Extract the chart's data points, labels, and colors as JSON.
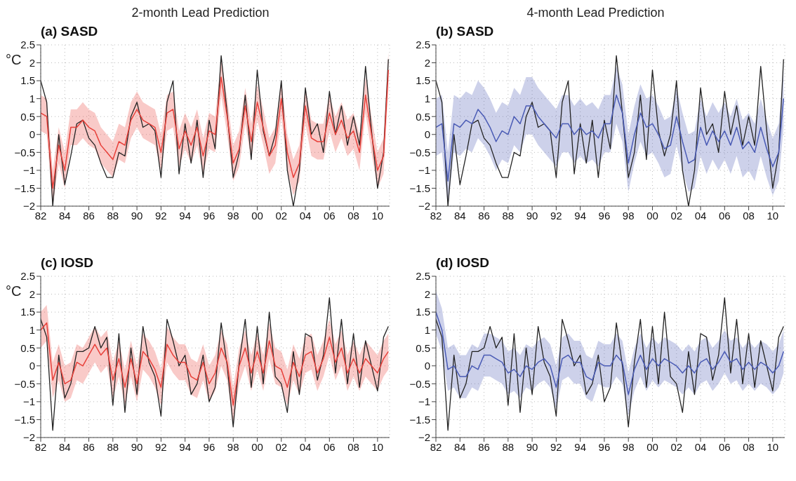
{
  "chart_data": [
    {
      "type": "line",
      "title": "2-month Lead Prediction",
      "subtitle": "(a) SASD",
      "ylabel": "°C",
      "x": [
        1982,
        1982.5,
        1983,
        1983.5,
        1984,
        1984.5,
        1985,
        1985.5,
        1986,
        1986.5,
        1987,
        1987.5,
        1988,
        1988.5,
        1989,
        1989.5,
        1990,
        1990.5,
        1991,
        1991.5,
        1992,
        1992.5,
        1993,
        1993.5,
        1994,
        1994.5,
        1995,
        1995.5,
        1996,
        1996.5,
        1997,
        1997.5,
        1998,
        1998.5,
        1999,
        1999.5,
        2000,
        2000.5,
        2001,
        2001.5,
        2002,
        2002.5,
        2003,
        2003.5,
        2004,
        2004.5,
        2005,
        2005.5,
        2006,
        2006.5,
        2007,
        2007.5,
        2008,
        2008.5,
        2009,
        2009.5,
        2010,
        2010.5,
        2010.9
      ],
      "series": [
        {
          "color": "#222222",
          "values": [
            1.5,
            0.9,
            -2.0,
            0.0,
            -1.4,
            -0.6,
            0.3,
            0.4,
            -0.1,
            -0.3,
            -0.8,
            -1.2,
            -1.2,
            -0.5,
            -0.6,
            0.5,
            0.9,
            0.2,
            0.3,
            0.1,
            -1.2,
            0.9,
            1.5,
            -1.1,
            0.3,
            -0.8,
            0.4,
            -1.2,
            0.4,
            -0.4,
            2.2,
            0.6,
            -1.2,
            -0.5,
            1.1,
            -0.7,
            1.8,
            0.1,
            -0.6,
            0.0,
            1.5,
            -1.0,
            -2.0,
            -1.0,
            1.3,
            0.0,
            0.3,
            -0.5,
            1.2,
            0.0,
            0.8,
            -0.3,
            0.5,
            -0.3,
            1.9,
            0.1,
            -1.5,
            -0.5,
            2.1
          ]
        },
        {
          "color": "#e8403a",
          "values": [
            0.6,
            0.5,
            -1.5,
            -0.3,
            -1.0,
            0.2,
            0.2,
            0.4,
            0.2,
            0.1,
            -0.3,
            -0.5,
            -0.7,
            -0.2,
            -0.3,
            0.4,
            0.7,
            0.4,
            0.3,
            0.2,
            -0.5,
            0.6,
            0.7,
            -0.4,
            0.1,
            -0.3,
            0.2,
            -0.6,
            0.1,
            0.0,
            1.6,
            0.5,
            -0.8,
            -0.4,
            0.8,
            -0.2,
            0.9,
            0.2,
            -0.6,
            -0.3,
            1.0,
            -0.5,
            -1.2,
            -0.8,
            0.8,
            -0.1,
            -0.2,
            -0.2,
            0.6,
            0.0,
            0.4,
            -0.1,
            0.1,
            -0.5,
            1.1,
            0.0,
            -1.0,
            -0.6,
            1.8
          ],
          "lower": [
            0.1,
            0.0,
            -2.0,
            -0.8,
            -1.5,
            -0.3,
            -0.3,
            -0.1,
            -0.3,
            -0.4,
            -0.8,
            -1.0,
            -1.2,
            -0.7,
            -0.8,
            -0.1,
            0.2,
            -0.1,
            -0.2,
            -0.3,
            -1.0,
            0.1,
            0.2,
            -0.9,
            -0.4,
            -0.8,
            -0.3,
            -1.1,
            -0.4,
            -0.5,
            1.1,
            0.0,
            -1.3,
            -0.9,
            0.3,
            -0.7,
            0.4,
            -0.3,
            -1.1,
            -0.8,
            0.5,
            -1.0,
            -1.7,
            -1.3,
            0.3,
            -0.6,
            -0.7,
            -0.7,
            0.1,
            -0.5,
            -0.1,
            -0.6,
            -0.4,
            -1.0,
            0.6,
            -0.5,
            -1.5,
            -1.1,
            1.3
          ],
          "upper": [
            1.1,
            1.0,
            -1.0,
            0.2,
            -0.5,
            0.7,
            0.7,
            0.9,
            0.7,
            0.6,
            0.2,
            0.0,
            -0.2,
            0.3,
            0.2,
            0.9,
            1.2,
            0.9,
            0.8,
            0.7,
            0.0,
            1.1,
            1.2,
            0.1,
            0.6,
            0.2,
            0.7,
            -0.1,
            0.6,
            0.5,
            2.1,
            1.0,
            -0.3,
            0.1,
            1.3,
            0.3,
            1.4,
            0.7,
            -0.1,
            0.2,
            1.5,
            0.0,
            -0.7,
            -0.3,
            1.3,
            0.4,
            0.3,
            0.3,
            1.1,
            0.5,
            0.9,
            0.4,
            0.6,
            0.0,
            1.6,
            0.5,
            -0.5,
            -0.1,
            2.3
          ]
        }
      ],
      "xlim": [
        1982,
        2011
      ],
      "xticks": [
        {
          "value": 1982,
          "label": "82"
        },
        {
          "value": 1984,
          "label": "84"
        },
        {
          "value": 1986,
          "label": "86"
        },
        {
          "value": 1988,
          "label": "88"
        },
        {
          "value": 1990,
          "label": "90"
        },
        {
          "value": 1992,
          "label": "92"
        },
        {
          "value": 1994,
          "label": "94"
        },
        {
          "value": 1996,
          "label": "96"
        },
        {
          "value": 1998,
          "label": "98"
        },
        {
          "value": 2000,
          "label": "00"
        },
        {
          "value": 2002,
          "label": "02"
        },
        {
          "value": 2004,
          "label": "04"
        },
        {
          "value": 2006,
          "label": "06"
        },
        {
          "value": 2008,
          "label": "08"
        },
        {
          "value": 2010,
          "label": "10"
        }
      ],
      "ylim": [
        -2,
        2.5
      ],
      "yticks": [
        -2,
        -1.5,
        -1,
        -0.5,
        0,
        0.5,
        1,
        1.5,
        2,
        2.5
      ],
      "grid": true
    },
    {
      "type": "line",
      "title": "4-month Lead Prediction",
      "subtitle": "(b) SASD",
      "x": [
        1982,
        1982.5,
        1983,
        1983.5,
        1984,
        1984.5,
        1985,
        1985.5,
        1986,
        1986.5,
        1987,
        1987.5,
        1988,
        1988.5,
        1989,
        1989.5,
        1990,
        1990.5,
        1991,
        1991.5,
        1992,
        1992.5,
        1993,
        1993.5,
        1994,
        1994.5,
        1995,
        1995.5,
        1996,
        1996.5,
        1997,
        1997.5,
        1998,
        1998.5,
        1999,
        1999.5,
        2000,
        2000.5,
        2001,
        2001.5,
        2002,
        2002.5,
        2003,
        2003.5,
        2004,
        2004.5,
        2005,
        2005.5,
        2006,
        2006.5,
        2007,
        2007.5,
        2008,
        2008.5,
        2009,
        2009.5,
        2010,
        2010.5,
        2010.9
      ],
      "series": [
        {
          "color": "#222222",
          "values": [
            1.5,
            0.9,
            -2.0,
            0.0,
            -1.4,
            -0.6,
            0.3,
            0.4,
            -0.1,
            -0.3,
            -0.8,
            -1.2,
            -1.2,
            -0.5,
            -0.6,
            0.5,
            0.9,
            0.2,
            0.3,
            0.1,
            -1.2,
            0.9,
            1.5,
            -1.1,
            0.3,
            -0.8,
            0.4,
            -1.2,
            0.4,
            -0.4,
            2.2,
            0.6,
            -1.2,
            -0.5,
            1.1,
            -0.7,
            1.8,
            0.1,
            -0.6,
            0.0,
            1.5,
            -1.0,
            -2.0,
            -1.0,
            1.3,
            0.0,
            0.3,
            -0.5,
            1.2,
            0.0,
            0.8,
            -0.3,
            0.5,
            -0.3,
            1.9,
            0.1,
            -1.5,
            -0.5,
            2.1
          ]
        },
        {
          "color": "#4a5bb5",
          "values": [
            0.2,
            0.3,
            -1.3,
            0.3,
            0.2,
            0.4,
            0.3,
            0.7,
            0.5,
            0.2,
            -0.2,
            0.1,
            0.0,
            0.5,
            0.3,
            0.8,
            0.8,
            0.5,
            0.3,
            0.1,
            -0.1,
            0.3,
            0.3,
            0.0,
            0.2,
            0.0,
            0.1,
            -0.1,
            0.3,
            0.3,
            1.1,
            0.6,
            -0.8,
            0.0,
            0.6,
            0.2,
            0.3,
            0.0,
            -0.4,
            -0.3,
            0.5,
            -0.2,
            -0.8,
            -0.7,
            0.2,
            -0.3,
            0.1,
            -0.2,
            0.1,
            -0.3,
            0.2,
            -0.4,
            -0.2,
            -0.5,
            0.2,
            -0.4,
            -0.9,
            -0.5,
            1.0
          ],
          "lower": [
            -0.6,
            -0.5,
            -2.0,
            -0.5,
            -0.6,
            -0.4,
            -0.5,
            -0.1,
            -0.3,
            -0.6,
            -1.0,
            -0.7,
            -0.8,
            -0.3,
            -0.5,
            0.0,
            0.0,
            -0.3,
            -0.5,
            -0.7,
            -0.9,
            -0.5,
            -0.5,
            -0.8,
            -0.6,
            -0.8,
            -0.7,
            -0.9,
            -0.5,
            -0.5,
            0.3,
            -0.2,
            -1.6,
            -0.8,
            -0.2,
            -0.6,
            -0.5,
            -0.8,
            -1.2,
            -1.1,
            -0.3,
            -1.0,
            -1.6,
            -1.5,
            -0.6,
            -1.1,
            -0.7,
            -1.0,
            -0.7,
            -1.1,
            -0.6,
            -1.2,
            -1.0,
            -1.3,
            -0.6,
            -1.2,
            -1.7,
            -1.3,
            0.2
          ],
          "upper": [
            1.0,
            1.1,
            -0.5,
            1.1,
            1.0,
            1.2,
            1.1,
            1.5,
            1.3,
            1.0,
            0.6,
            0.9,
            0.8,
            1.3,
            1.1,
            1.6,
            1.6,
            1.3,
            1.1,
            0.9,
            0.7,
            1.1,
            1.1,
            0.8,
            1.0,
            0.8,
            0.9,
            0.7,
            1.1,
            1.1,
            1.9,
            1.4,
            0.0,
            0.8,
            1.4,
            1.0,
            1.1,
            0.8,
            0.4,
            0.5,
            1.3,
            0.6,
            0.0,
            0.1,
            1.0,
            0.5,
            0.9,
            0.6,
            0.9,
            0.5,
            1.0,
            0.4,
            0.6,
            0.3,
            1.0,
            0.4,
            -0.1,
            0.3,
            1.8
          ]
        }
      ],
      "xlim": [
        1982,
        2011
      ],
      "xticks": [
        {
          "value": 1982,
          "label": "82"
        },
        {
          "value": 1984,
          "label": "84"
        },
        {
          "value": 1986,
          "label": "86"
        },
        {
          "value": 1988,
          "label": "88"
        },
        {
          "value": 1990,
          "label": "90"
        },
        {
          "value": 1992,
          "label": "92"
        },
        {
          "value": 1994,
          "label": "94"
        },
        {
          "value": 1996,
          "label": "96"
        },
        {
          "value": 1998,
          "label": "98"
        },
        {
          "value": 2000,
          "label": "00"
        },
        {
          "value": 2002,
          "label": "02"
        },
        {
          "value": 2004,
          "label": "04"
        },
        {
          "value": 2006,
          "label": "06"
        },
        {
          "value": 2008,
          "label": "08"
        },
        {
          "value": 2010,
          "label": "10"
        }
      ],
      "ylim": [
        -2,
        2.5
      ],
      "yticks": [
        -2,
        -1.5,
        -1,
        -0.5,
        0,
        0.5,
        1,
        1.5,
        2,
        2.5
      ],
      "grid": true
    },
    {
      "type": "line",
      "subtitle": "(c) IOSD",
      "ylabel": "°C",
      "x": [
        1982,
        1982.5,
        1983,
        1983.5,
        1984,
        1984.5,
        1985,
        1985.5,
        1986,
        1986.5,
        1987,
        1987.5,
        1988,
        1988.5,
        1989,
        1989.5,
        1990,
        1990.5,
        1991,
        1991.5,
        1992,
        1992.5,
        1993,
        1993.5,
        1994,
        1994.5,
        1995,
        1995.5,
        1996,
        1996.5,
        1997,
        1997.5,
        1998,
        1998.5,
        1999,
        1999.5,
        2000,
        2000.5,
        2001,
        2001.5,
        2002,
        2002.5,
        2003,
        2003.5,
        2004,
        2004.5,
        2005,
        2005.5,
        2006,
        2006.5,
        2007,
        2007.5,
        2008,
        2008.5,
        2009,
        2009.5,
        2010,
        2010.5,
        2010.9
      ],
      "series": [
        {
          "color": "#222222",
          "values": [
            1.3,
            0.8,
            -1.8,
            0.3,
            -0.9,
            -0.5,
            0.4,
            0.4,
            0.5,
            1.1,
            0.5,
            0.8,
            -1.1,
            0.9,
            -1.3,
            0.5,
            -0.8,
            1.1,
            0.1,
            -0.3,
            -1.4,
            1.3,
            0.7,
            0.0,
            0.3,
            -0.8,
            -0.5,
            0.3,
            -1.0,
            -0.6,
            1.2,
            0.0,
            -1.7,
            0.1,
            1.3,
            -0.6,
            1.1,
            -0.5,
            1.5,
            -0.3,
            -0.5,
            -1.3,
            0.4,
            -0.8,
            0.9,
            0.8,
            -0.4,
            0.3,
            1.9,
            -0.2,
            1.3,
            -0.5,
            0.9,
            -0.6,
            0.7,
            0.0,
            -0.7,
            0.8,
            1.1
          ]
        },
        {
          "color": "#e8403a",
          "values": [
            1.0,
            1.2,
            -0.4,
            0.1,
            -0.5,
            -0.4,
            0.1,
            0.0,
            0.3,
            0.6,
            0.3,
            0.5,
            -0.4,
            0.2,
            -0.6,
            0.2,
            -0.5,
            0.4,
            0.2,
            -0.1,
            -0.6,
            0.6,
            0.3,
            0.1,
            0.1,
            -0.3,
            -0.4,
            0.1,
            -0.5,
            -0.2,
            0.5,
            0.1,
            -1.1,
            0.0,
            0.5,
            -0.2,
            0.4,
            -0.2,
            0.7,
            0.0,
            -0.1,
            -0.6,
            0.1,
            -0.3,
            0.3,
            0.4,
            -0.2,
            0.2,
            0.8,
            0.1,
            0.5,
            -0.2,
            0.2,
            -0.2,
            0.2,
            0.0,
            -0.2,
            0.2,
            0.4
          ],
          "lower": [
            0.5,
            0.7,
            -0.9,
            -0.4,
            -1.0,
            -0.9,
            -0.4,
            -0.5,
            -0.2,
            0.1,
            -0.2,
            0.0,
            -0.9,
            -0.3,
            -1.1,
            -0.3,
            -1.0,
            -0.1,
            -0.3,
            -0.6,
            -1.1,
            0.1,
            -0.2,
            -0.4,
            -0.4,
            -0.8,
            -0.9,
            -0.4,
            -1.0,
            -0.7,
            0.0,
            -0.4,
            -1.6,
            -0.5,
            0.0,
            -0.7,
            -0.1,
            -0.7,
            0.2,
            -0.5,
            -0.6,
            -1.1,
            -0.4,
            -0.8,
            -0.2,
            -0.1,
            -0.7,
            -0.3,
            0.3,
            -0.4,
            0.0,
            -0.7,
            -0.3,
            -0.7,
            -0.3,
            -0.5,
            -0.7,
            -0.3,
            -0.1
          ],
          "upper": [
            1.5,
            1.7,
            0.1,
            0.6,
            0.0,
            0.1,
            0.6,
            0.5,
            0.8,
            1.1,
            0.8,
            1.0,
            0.1,
            0.7,
            -0.1,
            0.7,
            0.0,
            0.9,
            0.7,
            0.4,
            -0.1,
            1.1,
            0.8,
            0.6,
            0.6,
            0.2,
            0.1,
            0.6,
            0.0,
            0.3,
            1.0,
            0.6,
            -0.6,
            0.5,
            1.0,
            0.3,
            0.9,
            0.3,
            1.2,
            0.5,
            0.4,
            -0.1,
            0.6,
            0.2,
            0.8,
            0.9,
            0.3,
            0.7,
            1.3,
            0.6,
            1.0,
            0.3,
            0.7,
            0.3,
            0.7,
            0.5,
            0.3,
            0.7,
            0.9
          ]
        }
      ],
      "xlim": [
        1982,
        2011
      ],
      "xticks": [
        {
          "value": 1982,
          "label": "82"
        },
        {
          "value": 1984,
          "label": "84"
        },
        {
          "value": 1986,
          "label": "86"
        },
        {
          "value": 1988,
          "label": "88"
        },
        {
          "value": 1990,
          "label": "90"
        },
        {
          "value": 1992,
          "label": "92"
        },
        {
          "value": 1994,
          "label": "94"
        },
        {
          "value": 1996,
          "label": "96"
        },
        {
          "value": 1998,
          "label": "98"
        },
        {
          "value": 2000,
          "label": "00"
        },
        {
          "value": 2002,
          "label": "02"
        },
        {
          "value": 2004,
          "label": "04"
        },
        {
          "value": 2006,
          "label": "06"
        },
        {
          "value": 2008,
          "label": "08"
        },
        {
          "value": 2010,
          "label": "10"
        }
      ],
      "ylim": [
        -2,
        2.5
      ],
      "yticks": [
        -2,
        -1.5,
        -1,
        -0.5,
        0,
        0.5,
        1,
        1.5,
        2,
        2.5
      ],
      "grid": true
    },
    {
      "type": "line",
      "subtitle": "(d) IOSD",
      "x": [
        1982,
        1982.5,
        1983,
        1983.5,
        1984,
        1984.5,
        1985,
        1985.5,
        1986,
        1986.5,
        1987,
        1987.5,
        1988,
        1988.5,
        1989,
        1989.5,
        1990,
        1990.5,
        1991,
        1991.5,
        1992,
        1992.5,
        1993,
        1993.5,
        1994,
        1994.5,
        1995,
        1995.5,
        1996,
        1996.5,
        1997,
        1997.5,
        1998,
        1998.5,
        1999,
        1999.5,
        2000,
        2000.5,
        2001,
        2001.5,
        2002,
        2002.5,
        2003,
        2003.5,
        2004,
        2004.5,
        2005,
        2005.5,
        2006,
        2006.5,
        2007,
        2007.5,
        2008,
        2008.5,
        2009,
        2009.5,
        2010,
        2010.5,
        2010.9
      ],
      "series": [
        {
          "color": "#222222",
          "values": [
            1.3,
            0.8,
            -1.8,
            0.3,
            -0.9,
            -0.5,
            0.4,
            0.4,
            0.5,
            1.1,
            0.5,
            0.8,
            -1.1,
            0.9,
            -1.3,
            0.5,
            -0.8,
            1.1,
            0.1,
            -0.3,
            -1.4,
            1.3,
            0.7,
            0.0,
            0.3,
            -0.8,
            -0.5,
            0.3,
            -1.0,
            -0.6,
            1.2,
            0.0,
            -1.7,
            0.1,
            1.3,
            -0.6,
            1.1,
            -0.5,
            1.5,
            -0.3,
            -0.5,
            -1.3,
            0.4,
            -0.8,
            0.9,
            0.8,
            -0.4,
            0.3,
            1.9,
            -0.2,
            1.3,
            -0.5,
            0.9,
            -0.6,
            0.7,
            0.0,
            -0.7,
            0.8,
            1.1
          ]
        },
        {
          "color": "#4a5bb5",
          "values": [
            1.5,
            1.0,
            -0.1,
            0.0,
            -0.3,
            -0.3,
            0.0,
            -0.1,
            0.3,
            0.3,
            0.2,
            0.1,
            -0.2,
            -0.1,
            -0.3,
            0.0,
            -0.1,
            0.1,
            0.2,
            0.0,
            -0.6,
            0.2,
            0.3,
            0.1,
            0.1,
            -0.3,
            -0.4,
            0.1,
            0.0,
            0.0,
            0.3,
            0.1,
            -0.8,
            -0.1,
            0.3,
            -0.1,
            0.2,
            0.0,
            0.2,
            0.1,
            0.0,
            -0.2,
            0.0,
            -0.2,
            0.1,
            0.2,
            -0.1,
            0.1,
            0.4,
            0.1,
            0.2,
            -0.1,
            0.1,
            -0.1,
            0.1,
            0.0,
            -0.2,
            0.0,
            0.4
          ],
          "lower": [
            0.9,
            0.4,
            -0.7,
            -0.6,
            -0.9,
            -0.9,
            -0.6,
            -0.7,
            -0.3,
            -0.3,
            -0.4,
            -0.5,
            -0.8,
            -0.7,
            -0.9,
            -0.6,
            -0.7,
            -0.5,
            -0.4,
            -0.6,
            -1.2,
            -0.4,
            -0.3,
            -0.5,
            -0.5,
            -0.9,
            -1.0,
            -0.5,
            -0.6,
            -0.6,
            -0.3,
            -0.5,
            -1.4,
            -0.7,
            -0.3,
            -0.7,
            -0.4,
            -0.6,
            -0.4,
            -0.5,
            -0.6,
            -0.8,
            -0.6,
            -0.8,
            -0.5,
            -0.4,
            -0.7,
            -0.5,
            -0.2,
            -0.5,
            -0.4,
            -0.7,
            -0.5,
            -0.7,
            -0.5,
            -0.6,
            -0.8,
            -0.6,
            -0.2
          ],
          "upper": [
            2.1,
            1.6,
            0.5,
            0.6,
            0.3,
            0.3,
            0.6,
            0.5,
            0.9,
            0.9,
            0.8,
            0.7,
            0.4,
            0.5,
            0.3,
            0.6,
            0.5,
            0.7,
            0.8,
            0.6,
            0.0,
            0.8,
            0.9,
            0.7,
            0.7,
            0.3,
            0.2,
            0.7,
            0.6,
            0.6,
            0.9,
            0.7,
            -0.2,
            0.5,
            0.9,
            0.5,
            0.8,
            0.6,
            0.8,
            0.7,
            0.6,
            0.4,
            0.6,
            0.4,
            0.7,
            0.8,
            0.5,
            0.7,
            1.0,
            0.7,
            0.8,
            0.5,
            0.7,
            0.5,
            0.7,
            0.6,
            0.4,
            0.6,
            1.0
          ]
        }
      ],
      "xlim": [
        1982,
        2011
      ],
      "xticks": [
        {
          "value": 1982,
          "label": "82"
        },
        {
          "value": 1984,
          "label": "84"
        },
        {
          "value": 1986,
          "label": "86"
        },
        {
          "value": 1988,
          "label": "88"
        },
        {
          "value": 1990,
          "label": "90"
        },
        {
          "value": 1992,
          "label": "92"
        },
        {
          "value": 1994,
          "label": "94"
        },
        {
          "value": 1996,
          "label": "96"
        },
        {
          "value": 1998,
          "label": "98"
        },
        {
          "value": 2000,
          "label": "00"
        },
        {
          "value": 2002,
          "label": "02"
        },
        {
          "value": 2004,
          "label": "04"
        },
        {
          "value": 2006,
          "label": "06"
        },
        {
          "value": 2008,
          "label": "08"
        },
        {
          "value": 2010,
          "label": "10"
        }
      ],
      "ylim": [
        -2,
        2.5
      ],
      "yticks": [
        -2,
        -1.5,
        -1,
        -0.5,
        0,
        0.5,
        1,
        1.5,
        2,
        2.5
      ],
      "grid": true
    }
  ]
}
